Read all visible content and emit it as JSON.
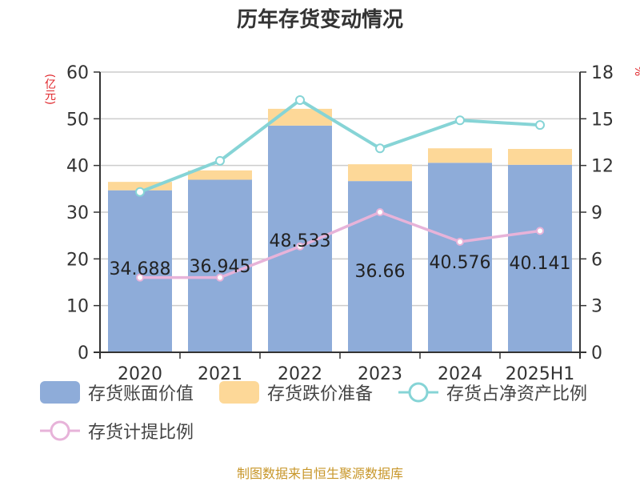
{
  "title": "历年存货变动情况",
  "left_axis_unit": "(亿元)",
  "right_axis_unit": "%",
  "source": "制图数据来自恒生聚源数据库",
  "colors": {
    "book_value": "#8eacd9",
    "reserve": "#fdd898",
    "net_asset_ratio": "#86d4d6",
    "provision_ratio": "#e7b3d9",
    "axis": "#333333",
    "grid": "#cccccc",
    "unit_label": "#e0262b",
    "source": "#c8972b"
  },
  "legend": [
    {
      "label": "存货账面价值",
      "type": "bar",
      "color": "#8eacd9"
    },
    {
      "label": "存货跌价准备",
      "type": "bar",
      "color": "#fdd898"
    },
    {
      "label": "存货占净资产比例",
      "type": "line",
      "color": "#86d4d6"
    },
    {
      "label": "存货计提比例",
      "type": "line",
      "color": "#e7b3d9"
    }
  ],
  "chart_data": {
    "type": "bar",
    "title": "历年存货变动情况",
    "xlabel": "",
    "ylabel": "(亿元)",
    "y2label": "%",
    "categories": [
      "2020",
      "2021",
      "2022",
      "2023",
      "2024",
      "2025H1"
    ],
    "ylim": [
      0,
      60
    ],
    "yticks": [
      0,
      10,
      20,
      30,
      40,
      50,
      60
    ],
    "y2lim": [
      0,
      18
    ],
    "y2ticks": [
      0,
      3,
      6,
      9,
      12,
      15,
      18
    ],
    "grid": true,
    "legend_position": "bottom",
    "series": [
      {
        "name": "存货账面价值",
        "type": "bar",
        "stack": "inv",
        "axis": "left",
        "values": [
          34.688,
          36.945,
          48.533,
          36.66,
          40.576,
          40.141
        ],
        "labels": [
          "34.688",
          "36.945",
          "48.533",
          "36.66",
          "40.576",
          "40.141"
        ]
      },
      {
        "name": "存货跌价准备",
        "type": "bar",
        "stack": "inv",
        "axis": "left",
        "values": [
          1.8,
          2.0,
          3.6,
          3.6,
          3.1,
          3.4
        ]
      },
      {
        "name": "存货占净资产比例",
        "type": "line",
        "axis": "right",
        "values": [
          10.3,
          12.3,
          16.2,
          13.1,
          14.9,
          14.6
        ]
      },
      {
        "name": "存货计提比例",
        "type": "line",
        "axis": "right",
        "values": [
          4.8,
          4.8,
          6.8,
          9.0,
          7.1,
          7.8
        ]
      }
    ]
  }
}
